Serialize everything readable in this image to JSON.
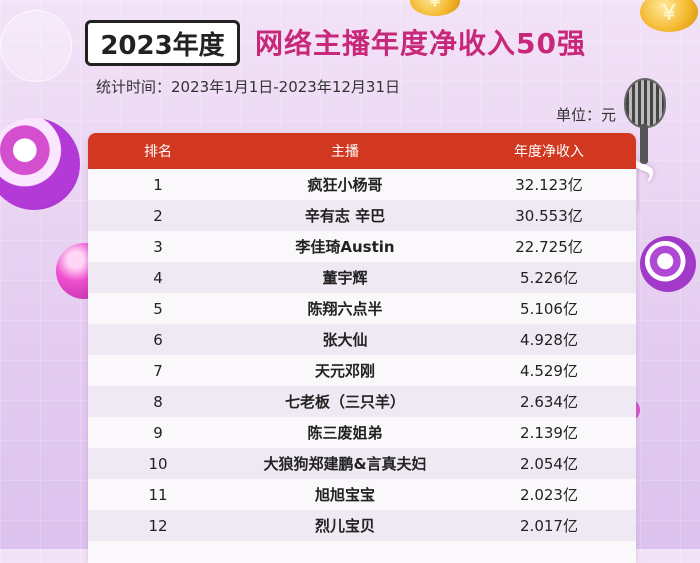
{
  "header": {
    "year_label": "2023年度",
    "headline": "网络主播年度净收入50强",
    "stat_period": "统计时间：2023年1月1日-2023年12月31日",
    "unit": "单位：元"
  },
  "table": {
    "columns": [
      "排名",
      "主播",
      "年度净收入"
    ],
    "rows": [
      {
        "rank": "1",
        "name": "疯狂小杨哥",
        "income": "32.123亿"
      },
      {
        "rank": "2",
        "name": "辛有志 辛巴",
        "income": "30.553亿"
      },
      {
        "rank": "3",
        "name": "李佳琦Austin",
        "income": "22.725亿"
      },
      {
        "rank": "4",
        "name": "董宇辉",
        "income": "5.226亿"
      },
      {
        "rank": "5",
        "name": "陈翔六点半",
        "income": "5.106亿"
      },
      {
        "rank": "6",
        "name": "张大仙",
        "income": "4.928亿"
      },
      {
        "rank": "7",
        "name": "天元邓刚",
        "income": "4.529亿"
      },
      {
        "rank": "8",
        "name": "七老板（三只羊）",
        "income": "2.634亿"
      },
      {
        "rank": "9",
        "name": "陈三废姐弟",
        "income": "2.139亿"
      },
      {
        "rank": "10",
        "name": "大狼狗郑建鹏&言真夫妇",
        "income": "2.054亿"
      },
      {
        "rank": "11",
        "name": "旭旭宝宝",
        "income": "2.023亿"
      },
      {
        "rank": "12",
        "name": "烈儿宝贝",
        "income": "2.017亿"
      }
    ]
  },
  "colors": {
    "header_bar": "#d2371f",
    "headline": "#c8287a"
  },
  "icons": [
    "microphone-icon",
    "music-note-icon",
    "coin-icon"
  ]
}
